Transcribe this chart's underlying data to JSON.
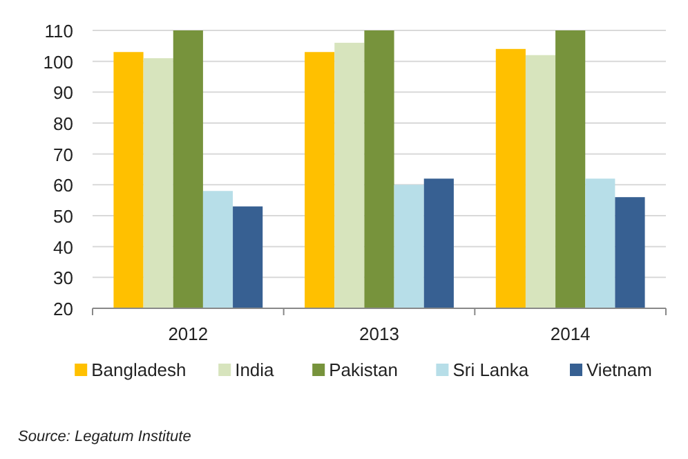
{
  "chart_data": {
    "type": "bar",
    "categories": [
      "2012",
      "2013",
      "2014"
    ],
    "series": [
      {
        "name": "Bangladesh",
        "color": "#ffc000",
        "values": [
          103,
          103,
          104
        ]
      },
      {
        "name": "India",
        "color": "#d7e4bd",
        "values": [
          101,
          106,
          102
        ]
      },
      {
        "name": "Pakistan",
        "color": "#77933c",
        "values": [
          110,
          110,
          110
        ]
      },
      {
        "name": "Sri Lanka",
        "color": "#b7dee8",
        "values": [
          58,
          60,
          62
        ]
      },
      {
        "name": "Vietnam",
        "color": "#376092",
        "values": [
          53,
          62,
          56
        ]
      }
    ],
    "ylim": [
      20,
      110
    ],
    "yticks": [
      20,
      30,
      40,
      50,
      60,
      70,
      80,
      90,
      100,
      110
    ],
    "grid": "y",
    "legend": "bottom",
    "annotations": [
      "Source: Legatum Institute"
    ]
  }
}
